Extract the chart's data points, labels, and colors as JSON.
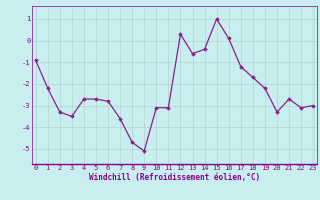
{
  "x": [
    0,
    1,
    2,
    3,
    4,
    5,
    6,
    7,
    8,
    9,
    10,
    11,
    12,
    13,
    14,
    15,
    16,
    17,
    18,
    19,
    20,
    21,
    22,
    23
  ],
  "y": [
    -0.9,
    -2.2,
    -3.3,
    -3.5,
    -2.7,
    -2.7,
    -2.8,
    -3.6,
    -4.7,
    -5.1,
    -3.1,
    -3.1,
    0.3,
    -0.6,
    -0.4,
    1.0,
    0.1,
    -1.2,
    -1.7,
    -2.2,
    -3.3,
    -2.7,
    -3.1,
    -3.0
  ],
  "line_color": "#882288",
  "marker": "D",
  "marker_size": 1.8,
  "line_width": 0.9,
  "bg_color": "#c8eef0",
  "grid_color": "#aacccc",
  "spine_color": "#880088",
  "tick_color": "#880088",
  "xlabel": "Windchill (Refroidissement éolien,°C)",
  "xlabel_fontsize": 5.5,
  "tick_fontsize": 5.0,
  "yticks": [
    -5,
    -4,
    -3,
    -2,
    -1,
    0,
    1
  ],
  "xticks": [
    0,
    1,
    2,
    3,
    4,
    5,
    6,
    7,
    8,
    9,
    10,
    11,
    12,
    13,
    14,
    15,
    16,
    17,
    18,
    19,
    20,
    21,
    22,
    23
  ],
  "ylim": [
    -5.7,
    1.6
  ],
  "xlim": [
    -0.3,
    23.3
  ]
}
